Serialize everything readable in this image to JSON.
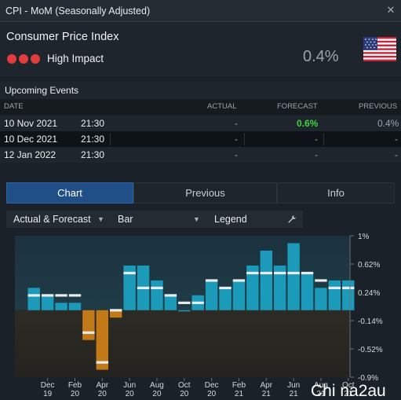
{
  "window": {
    "title": "CPI - MoM (Seasonally Adjusted)"
  },
  "summary": {
    "indicator": "Consumer Price Index",
    "impact_label": "High Impact",
    "impact_color": "#e23c3c",
    "actual": "0.4%",
    "country_flag": "us-flag-icon"
  },
  "events": {
    "title": "Upcoming Events",
    "columns": {
      "date": "DATE",
      "actual": "ACTUAL",
      "forecast": "FORECAST",
      "previous": "PREVIOUS"
    },
    "rows": [
      {
        "date": "10 Nov 2021",
        "time": "21:30",
        "actual": "-",
        "forecast": "0.6%",
        "previous": "0.4%"
      },
      {
        "date": "10 Dec 2021",
        "time": "21:30",
        "actual": "-",
        "forecast": "-",
        "previous": "-"
      },
      {
        "date": "12 Jan 2022",
        "time": "21:30",
        "actual": "-",
        "forecast": "-",
        "previous": "-"
      }
    ],
    "forecast_highlight_color": "#3fd43f"
  },
  "tabs": [
    {
      "label": "Chart",
      "active": true
    },
    {
      "label": "Previous",
      "active": false
    },
    {
      "label": "Info",
      "active": false
    }
  ],
  "toolbar": {
    "series_select": "Actual & Forecast",
    "type_select": "Bar",
    "legend_label": "Legend",
    "wrench_icon": "wrench-icon"
  },
  "chart_data": {
    "type": "bar",
    "categories": [
      "Nov 19",
      "Dec 19",
      "Jan 20",
      "Feb 20",
      "Mar 20",
      "Apr 20",
      "May 20",
      "Jun 20",
      "Jul 20",
      "Aug 20",
      "Sep 20",
      "Oct 20",
      "Nov 20",
      "Dec 20",
      "Jan 21",
      "Feb 21",
      "Mar 21",
      "Apr 21",
      "May 21",
      "Jun 21",
      "Jul 21",
      "Aug 21",
      "Sep 21",
      "Oct 21"
    ],
    "x_tick_labels": [
      {
        "month": "Dec",
        "year": "19"
      },
      {
        "month": "Feb",
        "year": "20"
      },
      {
        "month": "Apr",
        "year": "20"
      },
      {
        "month": "Jun",
        "year": "20"
      },
      {
        "month": "Aug",
        "year": "20"
      },
      {
        "month": "Oct",
        "year": "20"
      },
      {
        "month": "Dec",
        "year": "20"
      },
      {
        "month": "Feb",
        "year": "21"
      },
      {
        "month": "Apr",
        "year": "21"
      },
      {
        "month": "Jun",
        "year": "21"
      },
      {
        "month": "Aug",
        "year": "21"
      },
      {
        "month": "Oct",
        "year": "21"
      }
    ],
    "series": [
      {
        "name": "Actual",
        "values": [
          0.3,
          0.2,
          0.1,
          0.1,
          -0.4,
          -0.8,
          -0.1,
          0.6,
          0.6,
          0.4,
          0.2,
          0.0,
          0.2,
          0.4,
          0.3,
          0.4,
          0.6,
          0.8,
          0.6,
          0.9,
          0.5,
          0.3,
          0.4,
          0.4
        ]
      },
      {
        "name": "Forecast",
        "values": [
          0.2,
          0.2,
          0.2,
          0.2,
          -0.3,
          -0.7,
          0.0,
          0.5,
          0.3,
          0.3,
          0.2,
          0.1,
          0.1,
          0.4,
          0.3,
          0.4,
          0.5,
          0.5,
          0.5,
          0.5,
          0.5,
          0.4,
          0.3,
          0.3
        ]
      }
    ],
    "ylim": [
      -0.9,
      1.0
    ],
    "y_ticks": [
      1.0,
      0.62,
      0.24,
      -0.14,
      -0.52,
      -0.9
    ],
    "y_tick_labels": [
      "1%",
      "0.62%",
      "0.24%",
      "-0.14%",
      "-0.52%",
      "-0.9%"
    ],
    "colors": {
      "positive": "#1b9ab9",
      "negative": "#c17a17",
      "forecast_marker": "#e8ecef",
      "plot_bg_top": "#1d333f",
      "plot_bg_bottom": "#2c2a24"
    }
  },
  "watermark": "Chi na2au"
}
